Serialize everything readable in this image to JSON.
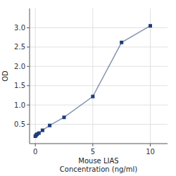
{
  "chart_data": {
    "type": "line",
    "x": [
      0.0,
      0.078,
      0.156,
      0.313,
      0.625,
      1.25,
      2.5,
      5.0,
      7.5,
      10.0
    ],
    "values": [
      0.192,
      0.222,
      0.245,
      0.272,
      0.345,
      0.47,
      0.68,
      1.22,
      2.62,
      3.05
    ],
    "xlabel": [
      "Mouse LIAS",
      "Concentration (ng/ml)"
    ],
    "ylabel": "OD",
    "xlim": [
      -0.5,
      11.5
    ],
    "ylim": [
      0.0,
      3.5
    ],
    "xticks": [
      0,
      5,
      10
    ],
    "yticks": [
      0.5,
      {
        "value": 1.0,
        "label": "1.0"
      },
      1.5,
      {
        "value": 2.0,
        "label": "2.0"
      },
      2.5,
      {
        "value": 3.0,
        "label": "3.0"
      }
    ],
    "grid": true,
    "color": "#1f3d7a",
    "marker": "square"
  }
}
